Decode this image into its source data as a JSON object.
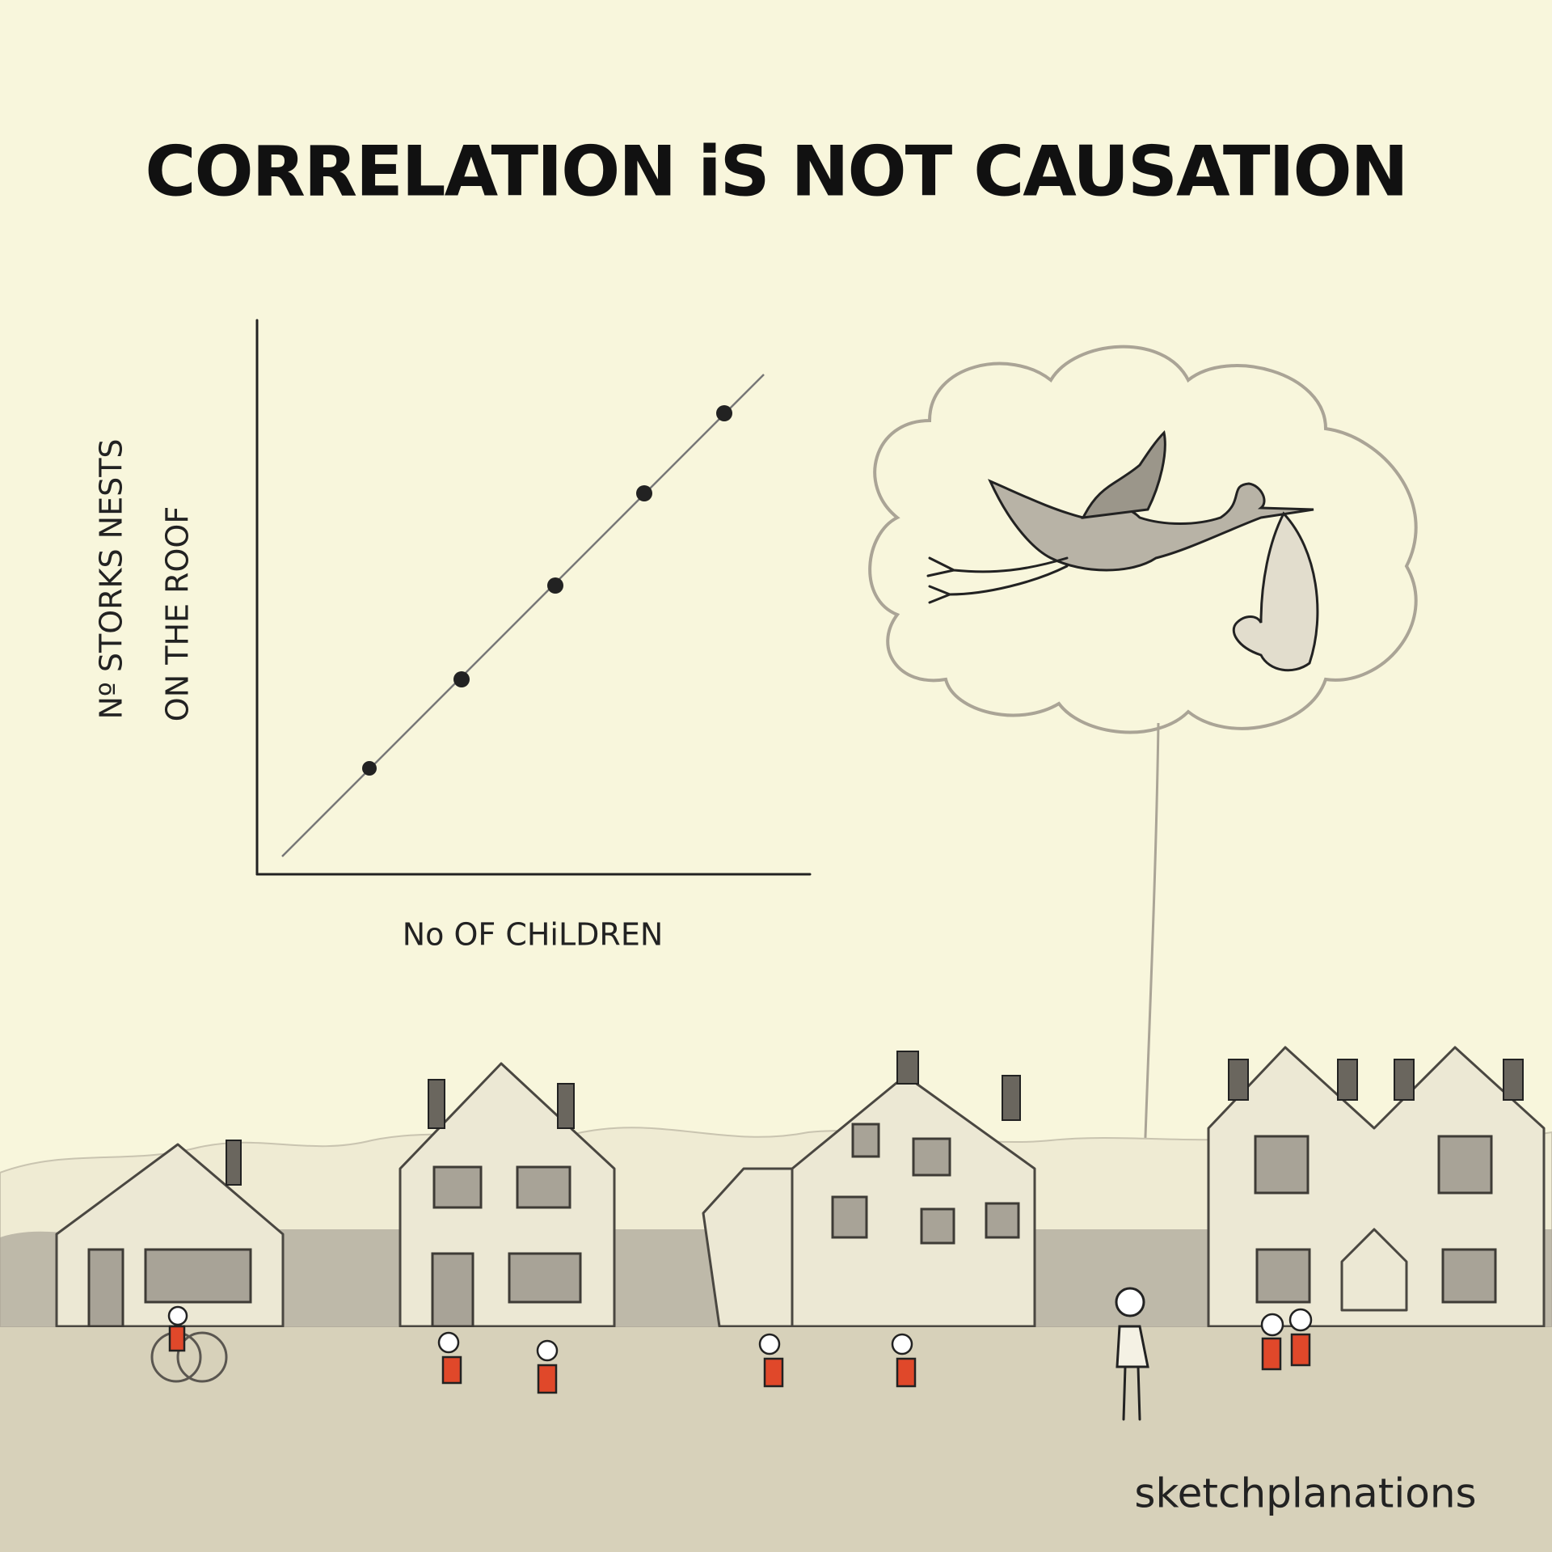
{
  "title": "CORRELATION iS NOT CAUSATION",
  "chart": {
    "y_label": [
      "Nº STORKS NESTS",
      "ON THE ROOF"
    ],
    "x_label": "No OF CHiLDREN"
  },
  "credit": "sketchplanations"
}
